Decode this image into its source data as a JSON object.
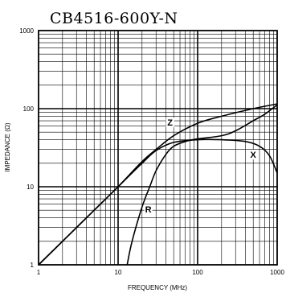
{
  "chart_data": {
    "type": "line",
    "title": "CB4516-600Y-N",
    "xlabel": "FREQUENCY (MHz)",
    "ylabel": "IMPEDANCE (Ω)",
    "x_scale": "log",
    "y_scale": "log",
    "xlim": [
      1,
      1000
    ],
    "ylim": [
      1,
      1000
    ],
    "x_ticks": [
      {
        "value": 1,
        "label": "1"
      },
      {
        "value": 10,
        "label": "10"
      },
      {
        "value": 100,
        "label": "100"
      },
      {
        "value": 1000,
        "label": "1000"
      }
    ],
    "y_ticks": [
      {
        "value": 1,
        "label": "1"
      },
      {
        "value": 10,
        "label": "10"
      },
      {
        "value": 100,
        "label": "100"
      },
      {
        "value": 1000,
        "label": "1000"
      }
    ],
    "grid": true,
    "series": [
      {
        "name": "Z",
        "x": [
          1,
          2,
          5,
          10,
          20,
          30,
          50,
          100,
          200,
          500,
          1000
        ],
        "y": [
          1,
          2,
          5,
          10,
          21,
          30,
          45,
          65,
          80,
          100,
          115
        ]
      },
      {
        "name": "X",
        "x": [
          1,
          2,
          5,
          10,
          20,
          30,
          50,
          100,
          200,
          400,
          600,
          800,
          1000
        ],
        "y": [
          1,
          2,
          5,
          10,
          20,
          29,
          37,
          40,
          40,
          38,
          33,
          25,
          15
        ]
      },
      {
        "name": "R",
        "x": [
          13,
          15,
          20,
          25,
          30,
          40,
          50,
          70,
          100,
          200,
          300,
          500,
          700,
          1000
        ],
        "y": [
          1,
          2,
          5.5,
          10,
          16,
          26,
          33,
          38,
          41,
          45,
          52,
          70,
          85,
          112
        ]
      }
    ],
    "annotations": [
      {
        "text": "Z",
        "series": "Z",
        "x": 45,
        "y": 62
      },
      {
        "text": "X",
        "series": "X",
        "x": 500,
        "y": 24
      },
      {
        "text": "R",
        "series": "R",
        "x": 24,
        "y": 4.8
      }
    ]
  }
}
